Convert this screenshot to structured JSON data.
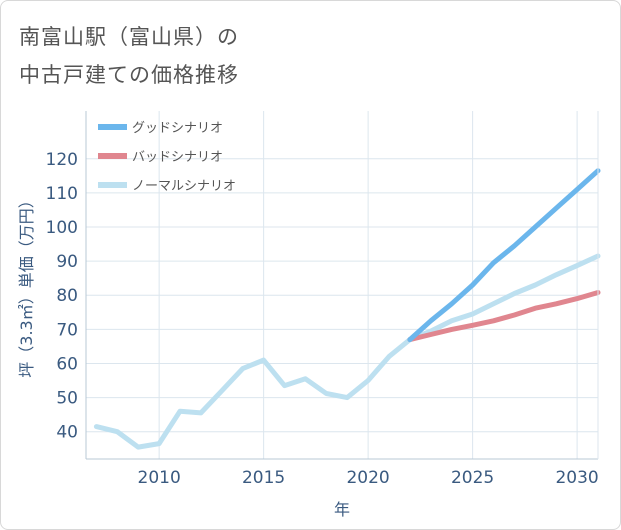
{
  "header": {
    "title_line1": "南富山駅（富山県）の",
    "title_line2": "中古戸建ての価格推移"
  },
  "chart_data": {
    "type": "line",
    "title": "南富山駅（富山県）の中古戸建ての価格推移",
    "xlabel": "年",
    "ylabel": "坪（3.3㎡）単価（万円）",
    "xlim": [
      2006.5,
      2031
    ],
    "ylim": [
      32,
      134
    ],
    "x_ticks": [
      2010,
      2015,
      2020,
      2025,
      2030
    ],
    "y_ticks": [
      40,
      50,
      60,
      70,
      80,
      90,
      100,
      110,
      120
    ],
    "grid": true,
    "legend_position": "top-left",
    "series": [
      {
        "name": "グッドシナリオ",
        "color": "#6bb6ec",
        "x": [
          2022,
          2023,
          2024,
          2025,
          2026,
          2027,
          2028,
          2029,
          2030,
          2031
        ],
        "values": [
          67,
          72.5,
          77.5,
          83,
          89.5,
          94.5,
          100,
          105.5,
          111,
          116.5
        ]
      },
      {
        "name": "バッドシナリオ",
        "color": "#e0868f",
        "x": [
          2022,
          2023,
          2024,
          2025,
          2026,
          2027,
          2028,
          2029,
          2030,
          2031
        ],
        "values": [
          67,
          68.5,
          70,
          71.2,
          72.5,
          74.2,
          76.2,
          77.5,
          79,
          80.8
        ]
      },
      {
        "name": "ノーマルシナリオ",
        "color": "#bde0f0",
        "x": [
          2007,
          2008,
          2009,
          2010,
          2011,
          2012,
          2013,
          2014,
          2015,
          2016,
          2017,
          2018,
          2019,
          2020,
          2021,
          2022,
          2023,
          2024,
          2025,
          2026,
          2027,
          2028,
          2029,
          2030,
          2031
        ],
        "values": [
          41.5,
          40,
          35.5,
          36.5,
          46,
          45.5,
          52,
          58.5,
          61,
          53.5,
          55.5,
          51.2,
          50,
          55,
          62,
          67,
          69.5,
          72.5,
          74.5,
          77.5,
          80.5,
          83,
          86,
          88.7,
          91.5
        ]
      }
    ]
  }
}
